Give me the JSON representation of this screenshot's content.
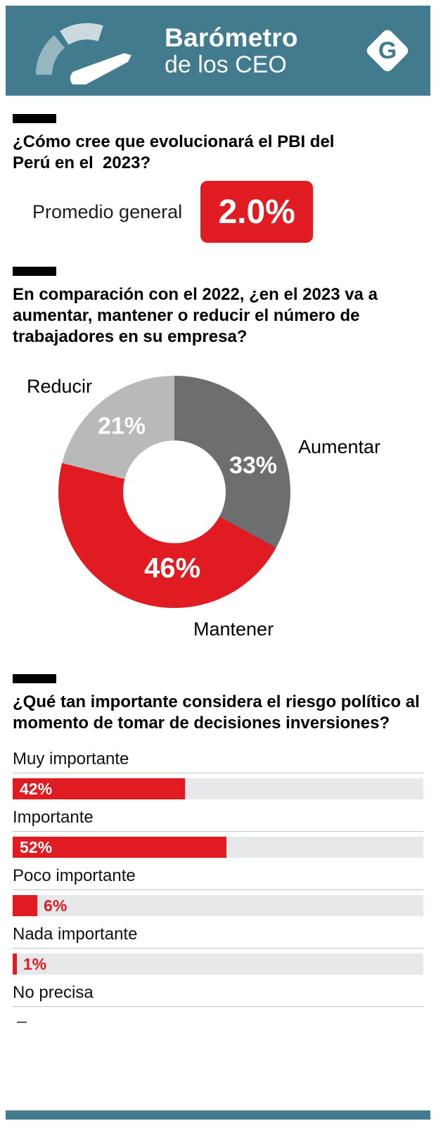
{
  "header": {
    "title_bold": "Barómetro",
    "title_light": "de los CEO",
    "logo_letter": "G"
  },
  "colors": {
    "teal": "#417B8D",
    "red": "#E01B22",
    "dark_gray": "#6D6E70",
    "light_gray": "#B7B9BB",
    "track_gray": "#E7E8E9"
  },
  "chart_data": [
    {
      "type": "stat",
      "question_lines": [
        "¿Cómo cree que evolucionará el PBI del",
        "Perú en el  2023?"
      ],
      "label": "Promedio general",
      "value": "2.0%"
    },
    {
      "type": "pie",
      "donut": true,
      "question_lines": [
        "En comparación con el 2022, ¿en el 2023 va a",
        "aumentar, mantener o reducir el número de",
        "trabajadores en su empresa?"
      ],
      "categories": [
        "Aumentar",
        "Mantener",
        "Reducir"
      ],
      "values": [
        33,
        46,
        21
      ],
      "value_labels": [
        "33%",
        "46%",
        "21%"
      ],
      "colors": [
        "#6D6E70",
        "#E01B22",
        "#B7B9BB"
      ]
    },
    {
      "type": "bar",
      "orientation": "horizontal",
      "question_lines": [
        "¿Qué tan importante considera el riesgo político al",
        "momento de tomar de decisiones inversiones?"
      ],
      "categories": [
        "Muy importante",
        "Importante",
        "Poco importante",
        "Nada importante",
        "No precisa"
      ],
      "values": [
        42,
        52,
        6,
        1,
        0
      ],
      "value_labels": [
        "42%",
        "52%",
        "6%",
        "1%",
        "–"
      ],
      "xlim": [
        0,
        100
      ]
    }
  ]
}
